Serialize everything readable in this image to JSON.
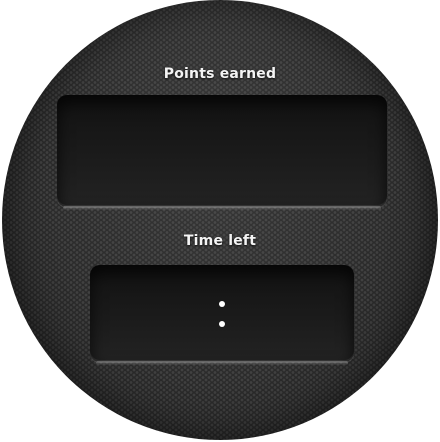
{
  "scoreboard": {
    "points_label": "Points earned",
    "points_value": "",
    "time_label": "Time left",
    "time_minutes": "",
    "time_seconds": ""
  },
  "colors": {
    "disc": "#2b2b2b",
    "panel": "#181818",
    "text": "#f4f4f4"
  }
}
